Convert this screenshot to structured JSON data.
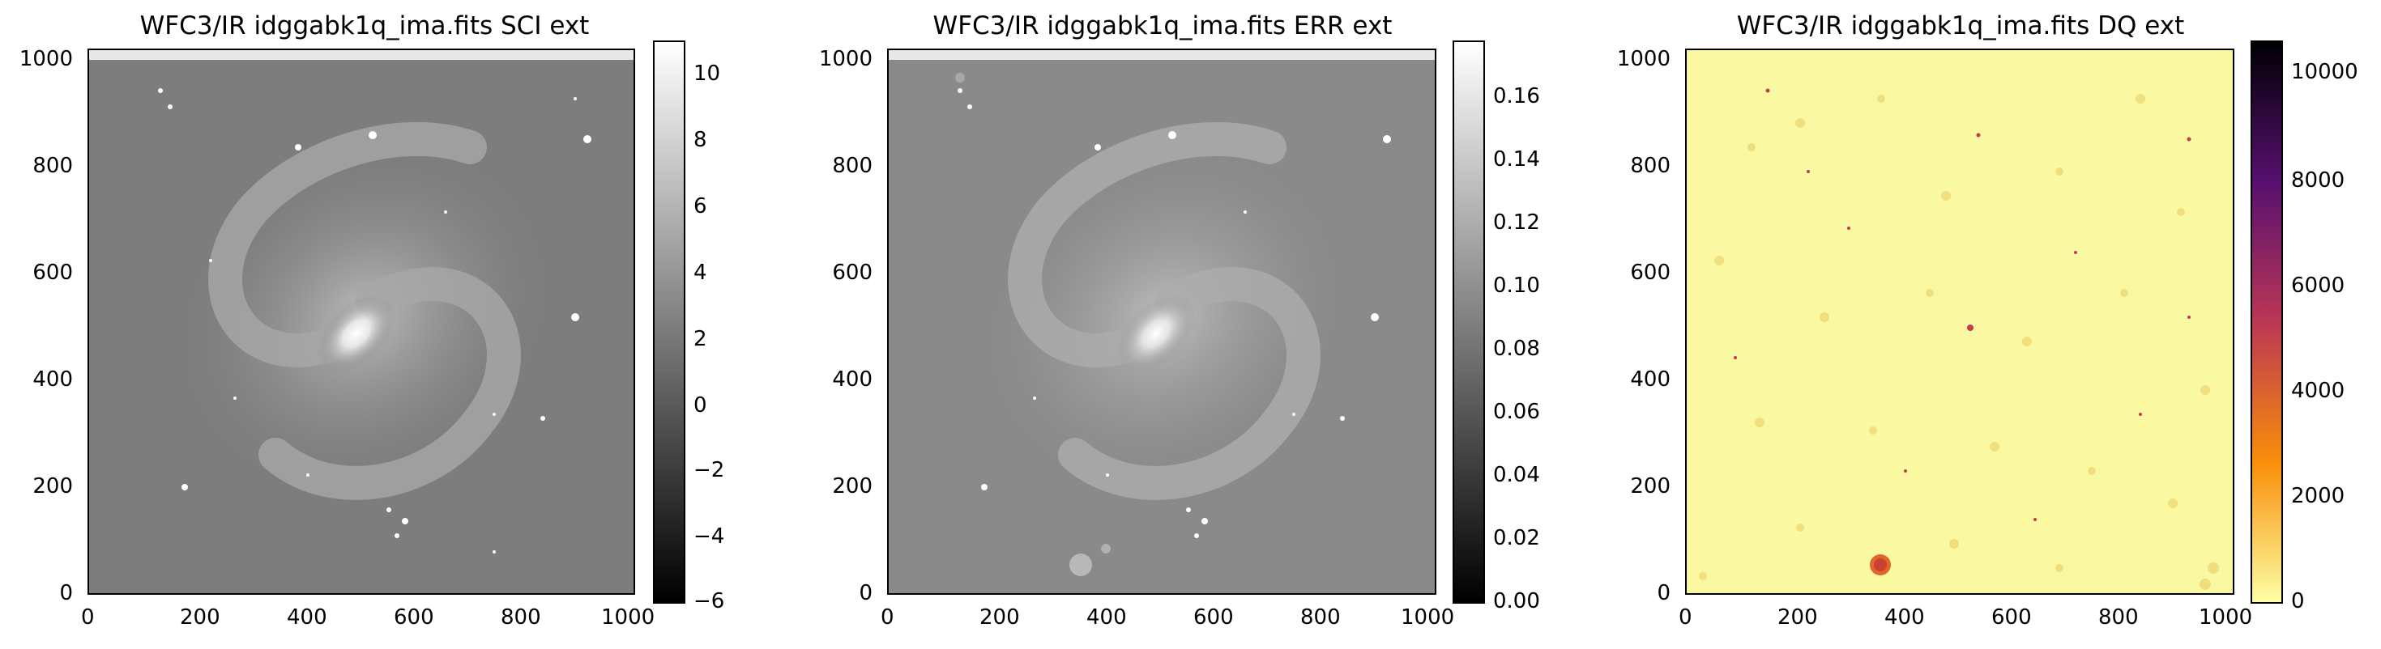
{
  "panels": [
    {
      "title": "WFC3/IR idggabk1q_ima.fits SCI ext",
      "xticks": [
        "0",
        "200",
        "400",
        "600",
        "800",
        "1000"
      ],
      "yticks": [
        "0",
        "200",
        "400",
        "600",
        "800",
        "1000"
      ],
      "cbar_ticks": [
        "−6",
        "−4",
        "−2",
        "0",
        "2",
        "4",
        "6",
        "8",
        "10"
      ],
      "cbar_colors": [
        "#000000",
        "#ffffff"
      ]
    },
    {
      "title": "WFC3/IR idggabk1q_ima.fits ERR ext",
      "xticks": [
        "0",
        "200",
        "400",
        "600",
        "800",
        "1000"
      ],
      "yticks": [
        "0",
        "200",
        "400",
        "600",
        "800",
        "1000"
      ],
      "cbar_ticks": [
        "0.00",
        "0.02",
        "0.04",
        "0.06",
        "0.08",
        "0.10",
        "0.12",
        "0.14",
        "0.16"
      ],
      "cbar_colors": [
        "#000000",
        "#ffffff"
      ]
    },
    {
      "title": "WFC3/IR idggabk1q_ima.fits DQ ext",
      "xticks": [
        "0",
        "200",
        "400",
        "600",
        "800",
        "1000"
      ],
      "yticks": [
        "0",
        "200",
        "400",
        "600",
        "800",
        "1000"
      ],
      "cbar_ticks": [
        "0",
        "2000",
        "4000",
        "6000",
        "8000",
        "10000"
      ],
      "cbar_colors": [
        "#fcffa4",
        "#f98e09",
        "#bc3754",
        "#57106e",
        "#000004"
      ]
    }
  ]
}
